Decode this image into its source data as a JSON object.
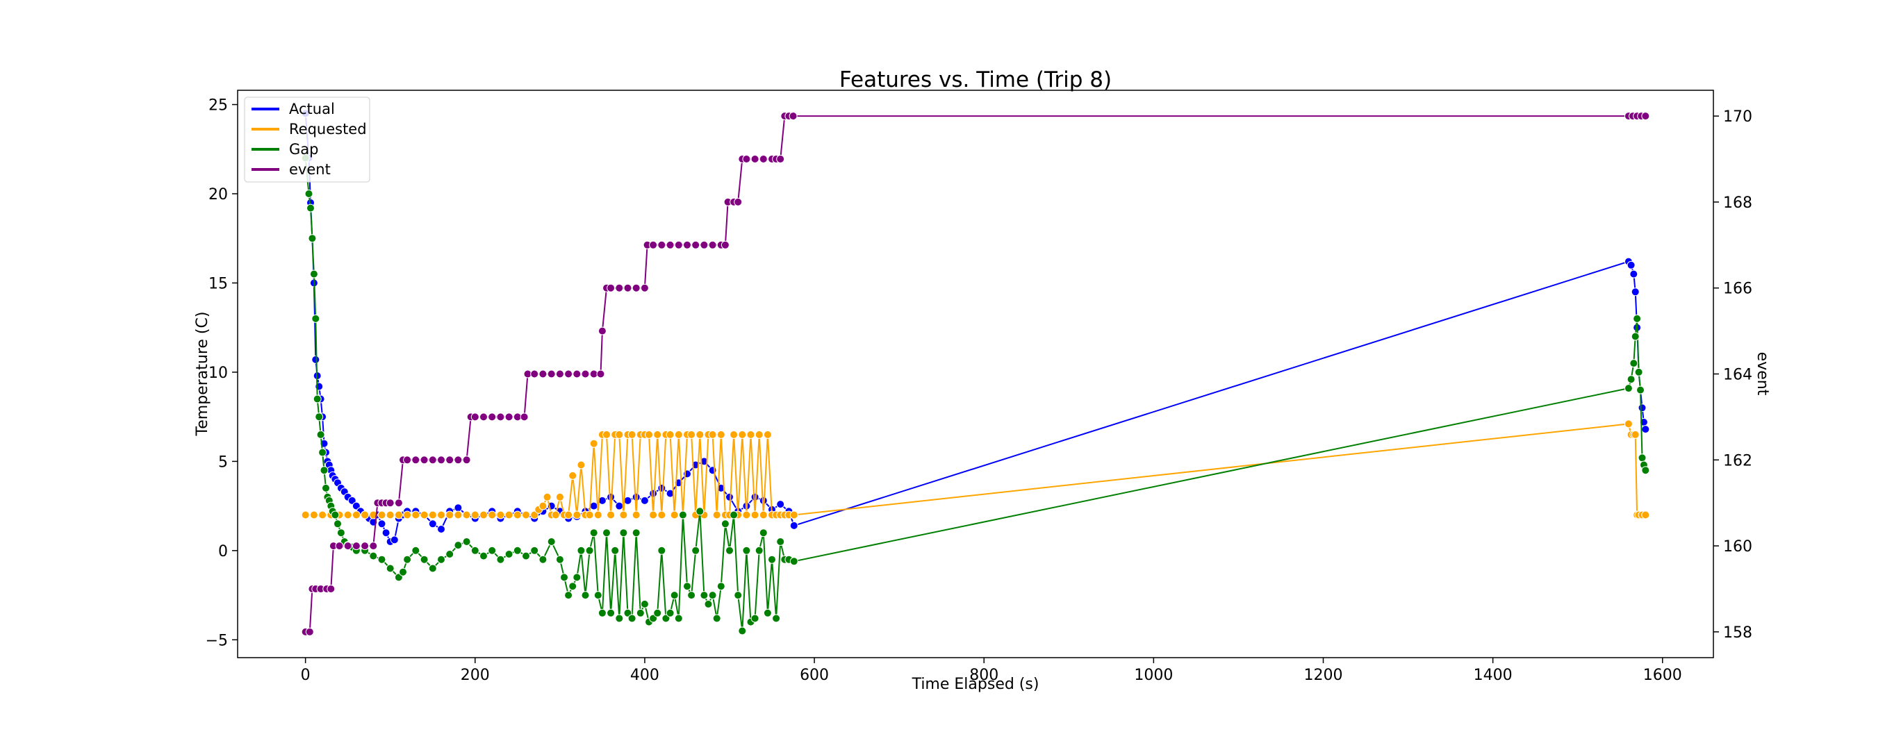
{
  "chart_data": {
    "type": "line",
    "title": "Features vs. Time (Trip 8)",
    "xlabel": "Time Elapsed (s)",
    "ylabel": "Temperature (C)",
    "y2label": "event",
    "xlim": [
      -80,
      1660
    ],
    "ylim": [
      -6,
      25.8
    ],
    "y2lim": [
      157.4,
      170.6
    ],
    "xticks": [
      0,
      200,
      400,
      600,
      800,
      1000,
      1200,
      1400,
      1600
    ],
    "yticks": [
      -5,
      0,
      5,
      10,
      15,
      20,
      25
    ],
    "y2ticks": [
      158,
      160,
      162,
      164,
      166,
      168,
      170
    ],
    "grid": false,
    "legend_position": "top-left",
    "legend": [
      "Actual",
      "Requested",
      "Gap",
      "event"
    ],
    "series": [
      {
        "name": "Actual",
        "axis": "left",
        "color": "#0000ff",
        "x": [
          0,
          4,
          6,
          8,
          10,
          12,
          14,
          16,
          18,
          20,
          22,
          24,
          26,
          28,
          30,
          32,
          35,
          38,
          42,
          46,
          50,
          55,
          60,
          65,
          70,
          75,
          80,
          85,
          90,
          95,
          100,
          105,
          110,
          115,
          120,
          130,
          140,
          150,
          160,
          170,
          180,
          190,
          200,
          210,
          220,
          230,
          240,
          250,
          260,
          270,
          280,
          290,
          300,
          310,
          320,
          330,
          340,
          350,
          360,
          370,
          380,
          390,
          400,
          410,
          420,
          430,
          440,
          450,
          460,
          470,
          480,
          490,
          500,
          510,
          520,
          530,
          540,
          550,
          560,
          570,
          576,
          1560,
          1563,
          1566,
          1568,
          1570,
          1572,
          1574,
          1576,
          1578,
          1580
        ],
        "y": [
          24.5,
          22,
          19.5,
          17.5,
          15,
          10.7,
          9.8,
          9.2,
          8.5,
          7.5,
          6,
          5.5,
          5,
          4.8,
          4.5,
          4.2,
          4,
          3.8,
          3.5,
          3.3,
          3,
          2.8,
          2.5,
          2.2,
          2,
          1.8,
          1.6,
          2,
          1.5,
          1,
          0.5,
          0.6,
          1.8,
          2,
          2.2,
          2.2,
          2,
          1.5,
          1.2,
          2.2,
          2.4,
          2,
          1.8,
          2,
          2.2,
          1.8,
          2,
          2.2,
          2,
          1.8,
          2.2,
          2.5,
          2.2,
          1.8,
          1.9,
          2.2,
          2.5,
          2.8,
          3,
          2.5,
          2.8,
          3,
          2.8,
          3.2,
          3.5,
          3.2,
          3.8,
          4.3,
          4.8,
          5,
          4.5,
          3.5,
          3,
          2.2,
          2.5,
          3,
          2.8,
          2.3,
          2.6,
          2.2,
          1.4,
          16.2,
          16.0,
          15.5,
          14.5,
          12.5,
          10,
          9,
          8,
          7.2,
          6.8
        ],
        "markers": true
      },
      {
        "name": "Requested",
        "axis": "left",
        "color": "#ffa500",
        "x": [
          0,
          10,
          20,
          30,
          40,
          50,
          60,
          70,
          80,
          90,
          100,
          110,
          120,
          130,
          140,
          150,
          160,
          170,
          180,
          190,
          200,
          210,
          220,
          230,
          240,
          250,
          260,
          270,
          275,
          280,
          285,
          290,
          295,
          300,
          305,
          310,
          315,
          320,
          325,
          330,
          335,
          340,
          345,
          350,
          355,
          360,
          365,
          370,
          375,
          380,
          385,
          390,
          395,
          400,
          405,
          410,
          415,
          420,
          425,
          430,
          435,
          440,
          445,
          450,
          455,
          460,
          465,
          470,
          475,
          480,
          485,
          490,
          495,
          500,
          505,
          510,
          515,
          520,
          525,
          530,
          535,
          540,
          545,
          550,
          555,
          560,
          565,
          570,
          576,
          1560,
          1563,
          1566,
          1568,
          1570,
          1572,
          1576,
          1580
        ],
        "y": [
          2,
          2,
          2,
          2,
          2,
          2,
          2,
          2,
          2,
          2,
          2,
          2,
          2,
          2,
          2,
          2,
          2,
          2,
          2,
          2,
          2,
          2,
          2,
          2,
          2,
          2,
          2,
          2,
          2.3,
          2.5,
          3,
          2,
          2,
          3,
          2,
          2,
          4.2,
          2,
          4.8,
          2,
          2,
          6,
          2,
          6.5,
          6.5,
          2,
          6.5,
          6.5,
          2,
          6.5,
          6.5,
          2,
          6.5,
          6.5,
          6.5,
          2,
          6.5,
          2,
          6.5,
          6.5,
          2,
          6.5,
          2,
          6.5,
          6.5,
          2,
          6.5,
          2,
          6.5,
          6.5,
          2,
          6.5,
          2,
          2,
          6.5,
          2,
          6.5,
          2,
          6.5,
          2,
          6.5,
          2,
          6.5,
          2,
          2,
          2,
          2,
          2,
          2,
          7.1,
          6.5,
          6.5,
          6.5,
          2,
          2,
          2,
          2
        ],
        "markers": true
      },
      {
        "name": "Gap",
        "axis": "left",
        "color": "#008000",
        "x": [
          0,
          4,
          6,
          8,
          10,
          12,
          14,
          16,
          18,
          20,
          22,
          24,
          26,
          28,
          30,
          32,
          35,
          38,
          42,
          46,
          50,
          55,
          60,
          70,
          80,
          90,
          100,
          110,
          115,
          120,
          130,
          140,
          150,
          160,
          170,
          180,
          190,
          200,
          210,
          220,
          230,
          240,
          250,
          260,
          270,
          280,
          290,
          300,
          305,
          310,
          315,
          320,
          325,
          330,
          335,
          340,
          345,
          350,
          355,
          360,
          365,
          370,
          375,
          380,
          385,
          390,
          395,
          400,
          405,
          410,
          415,
          420,
          425,
          430,
          435,
          440,
          445,
          450,
          455,
          460,
          465,
          470,
          475,
          480,
          485,
          490,
          495,
          500,
          505,
          510,
          515,
          520,
          525,
          530,
          535,
          540,
          545,
          550,
          555,
          560,
          565,
          570,
          576,
          1560,
          1563,
          1566,
          1568,
          1570,
          1572,
          1574,
          1576,
          1578,
          1580
        ],
        "y": [
          22,
          20,
          19.2,
          17.5,
          15.5,
          13,
          8.5,
          7.5,
          6.5,
          5.5,
          4.5,
          3.5,
          3,
          2.8,
          2.5,
          2.2,
          2,
          1.5,
          1,
          0.5,
          0.3,
          0.2,
          0,
          0,
          -0.3,
          -0.5,
          -1,
          -1.5,
          -1.2,
          -0.5,
          0,
          -0.5,
          -1,
          -0.5,
          -0.2,
          0.3,
          0.5,
          0,
          -0.3,
          0,
          -0.5,
          -0.2,
          0,
          -0.3,
          0,
          -0.5,
          0.5,
          -0.5,
          -1.5,
          -2.5,
          -2,
          -1.5,
          0,
          -2.5,
          0,
          1,
          -2.5,
          -3.5,
          1,
          -3.5,
          0,
          -3.8,
          1,
          -3.5,
          -3.8,
          1,
          -3.5,
          -3,
          -4,
          -3.8,
          -3.5,
          0,
          -3.8,
          -3.5,
          -2.5,
          -3.8,
          2,
          -2,
          -2.5,
          0,
          2.2,
          -2.5,
          -3,
          -2.5,
          -3.8,
          -2,
          1.5,
          0,
          2,
          -2.5,
          -4.5,
          0,
          -4,
          -3.8,
          0,
          1,
          -3.5,
          -0.5,
          -3.8,
          0.5,
          -0.5,
          -0.5,
          -0.6,
          9.1,
          9.6,
          10.5,
          12,
          13,
          10,
          9,
          5.2,
          4.8,
          4.5
        ],
        "markers": true
      },
      {
        "name": "event",
        "axis": "right",
        "color": "#800080",
        "x": [
          0,
          5,
          8,
          12,
          18,
          25,
          30,
          33,
          40,
          50,
          60,
          70,
          80,
          85,
          90,
          95,
          100,
          110,
          115,
          120,
          130,
          140,
          150,
          160,
          170,
          180,
          190,
          195,
          200,
          210,
          220,
          230,
          240,
          250,
          258,
          262,
          270,
          280,
          290,
          300,
          310,
          320,
          330,
          340,
          348,
          350,
          355,
          360,
          370,
          380,
          390,
          400,
          403,
          410,
          420,
          430,
          440,
          450,
          460,
          470,
          480,
          490,
          495,
          498,
          505,
          510,
          515,
          520,
          530,
          540,
          550,
          555,
          560,
          565,
          570,
          575,
          1560,
          1565,
          1570,
          1575,
          1580
        ],
        "y": [
          158,
          158,
          159,
          159,
          159,
          159,
          159,
          160,
          160,
          160,
          160,
          160,
          160,
          161,
          161,
          161,
          161,
          161,
          162,
          162,
          162,
          162,
          162,
          162,
          162,
          162,
          162,
          163,
          163,
          163,
          163,
          163,
          163,
          163,
          163,
          164,
          164,
          164,
          164,
          164,
          164,
          164,
          164,
          164,
          164,
          165,
          166,
          166,
          166,
          166,
          166,
          166,
          167,
          167,
          167,
          167,
          167,
          167,
          167,
          167,
          167,
          167,
          167,
          168,
          168,
          168,
          169,
          169,
          169,
          169,
          169,
          169,
          169,
          170,
          170,
          170,
          170,
          170,
          170,
          170,
          170
        ],
        "markers": true
      }
    ]
  }
}
